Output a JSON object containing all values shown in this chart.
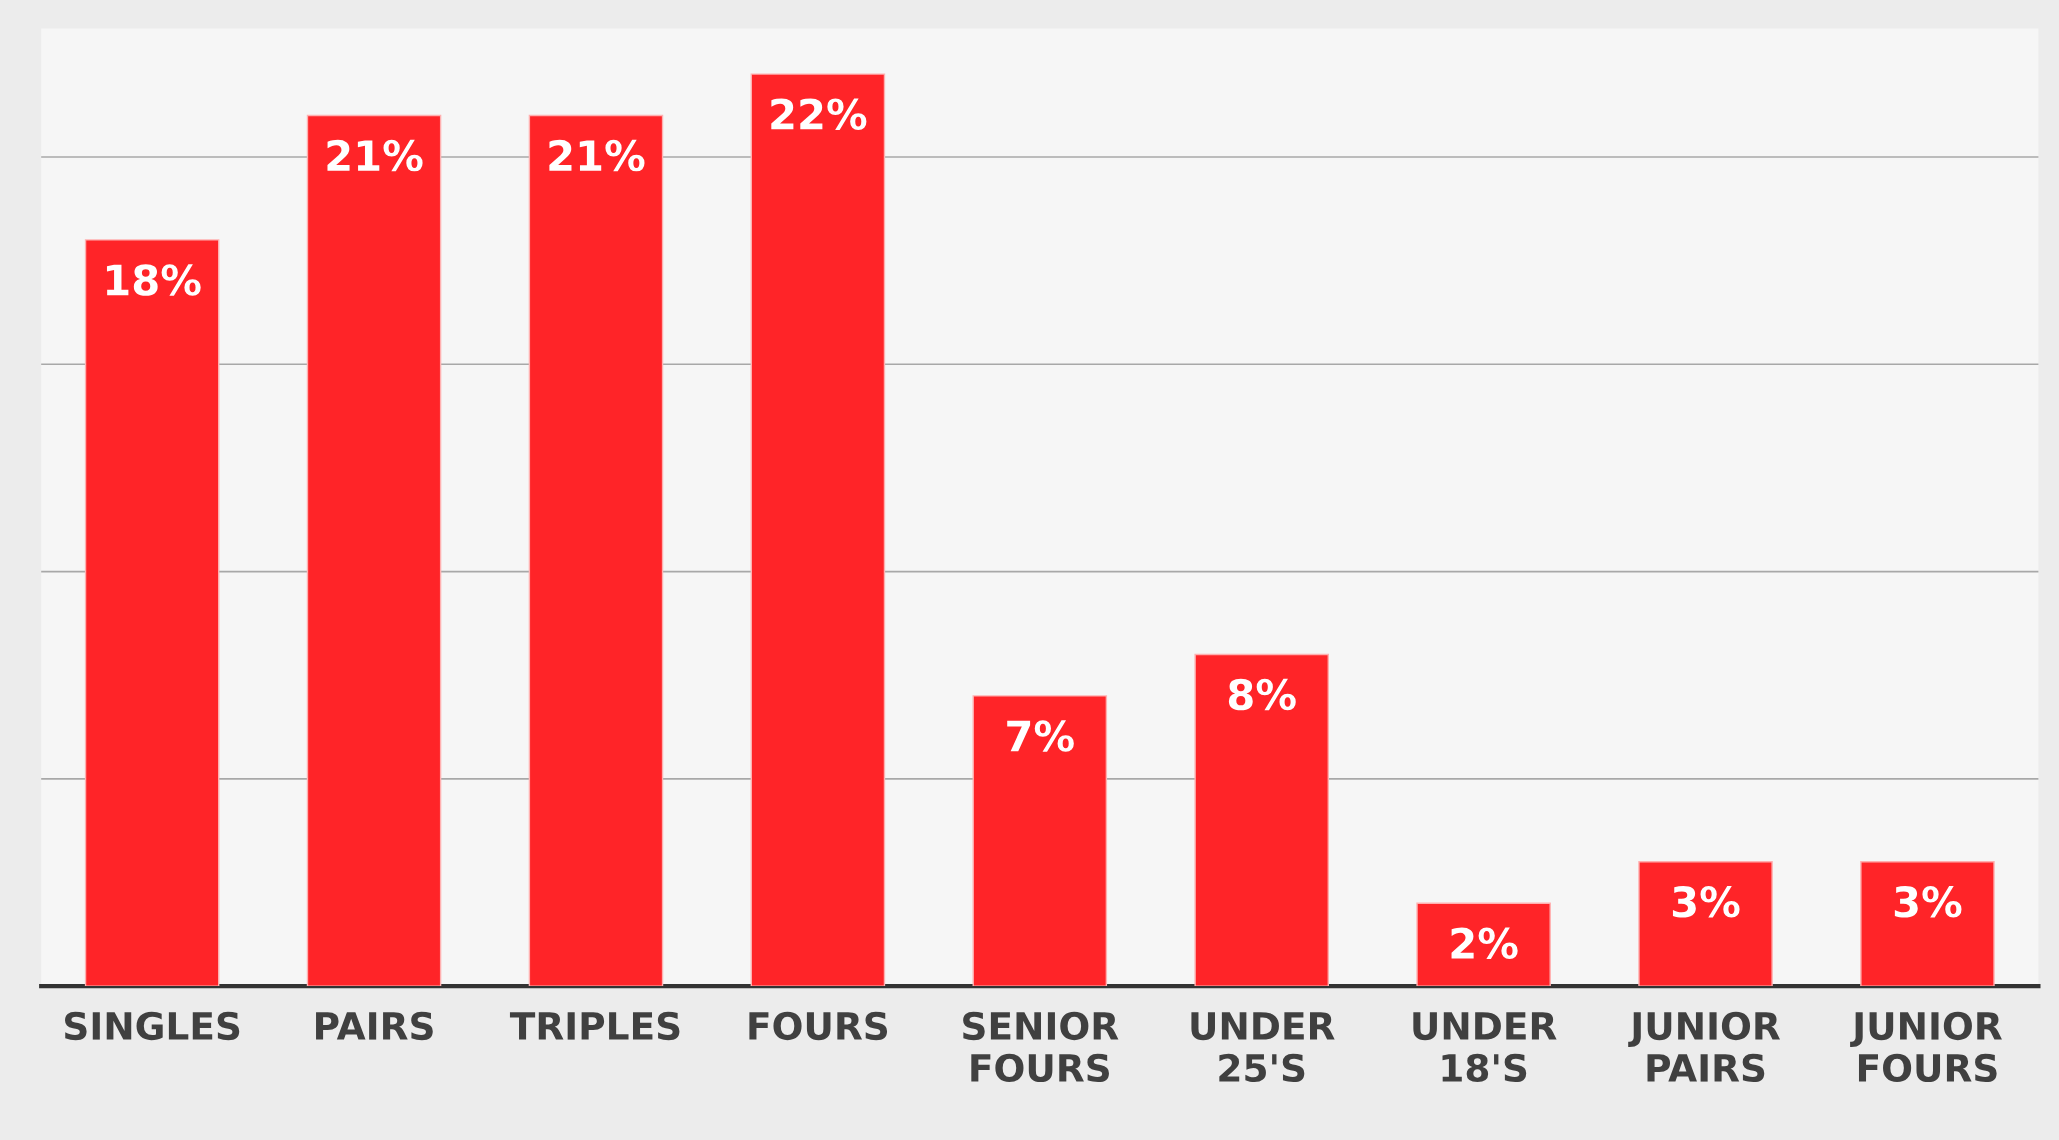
{
  "chart_data": {
    "type": "bar",
    "categories": [
      "SINGLES",
      "PAIRS",
      "TRIPLES",
      "FOURS",
      "SENIOR\nFOURS",
      "UNDER\n25'S",
      "UNDER\n18'S",
      "JUNIOR\nPAIRS",
      "JUNIOR\nFOURS"
    ],
    "values": [
      18,
      21,
      21,
      22,
      7,
      8,
      2,
      3,
      3
    ],
    "color": "#ff2428",
    "value_labels": [
      "18%",
      "21%",
      "21%",
      "22%",
      "7%",
      "8%",
      "2%",
      "3%",
      "3%"
    ],
    "tick_labels": "x",
    "grid": "y"
  }
}
